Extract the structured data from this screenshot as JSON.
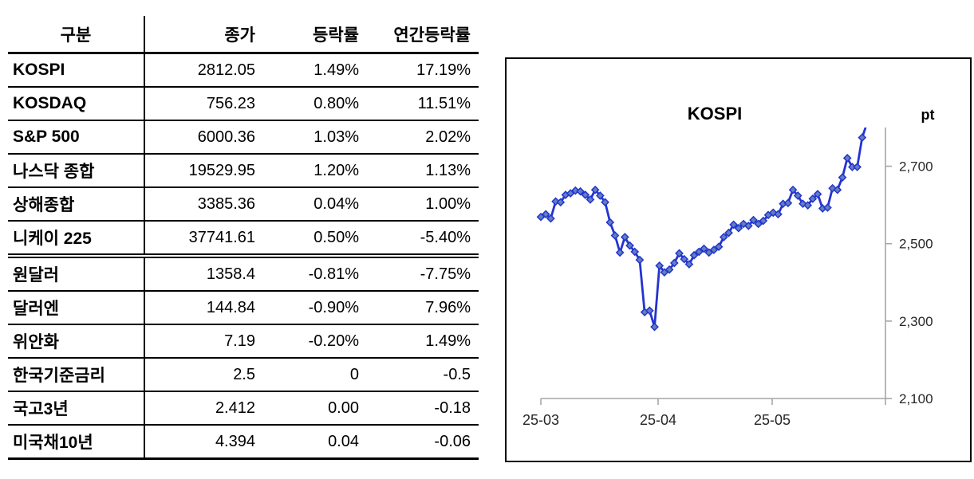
{
  "table": {
    "headers": [
      "구분",
      "종가",
      "등락률",
      "연간등락률"
    ],
    "rows": [
      {
        "label": "KOSPI",
        "values": [
          "2812.05",
          "1.49%",
          "17.19%"
        ]
      },
      {
        "label": "KOSDAQ",
        "values": [
          "756.23",
          "0.80%",
          "11.51%"
        ]
      },
      {
        "label": "S&P 500",
        "values": [
          "6000.36",
          "1.03%",
          "2.02%"
        ]
      },
      {
        "label": "나스닥 종합",
        "values": [
          "19529.95",
          "1.20%",
          "1.13%"
        ]
      },
      {
        "label": "상해종합",
        "values": [
          "3385.36",
          "0.04%",
          "1.00%"
        ]
      },
      {
        "label": "니케이 225",
        "values": [
          "37741.61",
          "0.50%",
          "-5.40%"
        ],
        "section_end": true
      },
      {
        "label": "원달러",
        "values": [
          "1358.4",
          "-0.81%",
          "-7.75%"
        ]
      },
      {
        "label": "달러엔",
        "values": [
          "144.84",
          "-0.90%",
          "7.96%"
        ]
      },
      {
        "label": "위안화",
        "values": [
          "7.19",
          "-0.20%",
          "1.49%"
        ]
      },
      {
        "label": "한국기준금리",
        "values": [
          "2.5",
          "0",
          "-0.5"
        ]
      },
      {
        "label": "국고3년",
        "values": [
          "2.412",
          "0.00",
          "-0.18"
        ]
      },
      {
        "label": "미국채10년",
        "values": [
          "4.394",
          "0.04",
          "-0.06"
        ]
      }
    ]
  },
  "chart_data": {
    "type": "line",
    "title": "KOSPI",
    "unit": "pt",
    "xlabel": "",
    "ylabel": "pt",
    "ylim": [
      2100,
      2800
    ],
    "grid": false,
    "legend": false,
    "axis_side": "right",
    "x_tick_labels": [
      "25-03",
      "25-04",
      "25-05"
    ],
    "y_ticks": [
      {
        "value": 2700,
        "label": "2,700"
      },
      {
        "value": 2500,
        "label": "2,500"
      },
      {
        "value": 2300,
        "label": "2,300"
      },
      {
        "value": 2100,
        "label": "2,100"
      }
    ],
    "series": [
      {
        "name": "KOSPI",
        "marker": "diamond",
        "values": [
          2569,
          2576,
          2565,
          2609,
          2607,
          2626,
          2630,
          2637,
          2635,
          2626,
          2614,
          2639,
          2624,
          2607,
          2555,
          2521,
          2477,
          2517,
          2495,
          2479,
          2458,
          2323,
          2327,
          2285,
          2443,
          2426,
          2433,
          2450,
          2475,
          2460,
          2447,
          2470,
          2479,
          2487,
          2477,
          2484,
          2492,
          2517,
          2528,
          2549,
          2540,
          2551,
          2546,
          2561,
          2551,
          2559,
          2574,
          2580,
          2576,
          2603,
          2605,
          2639,
          2624,
          2603,
          2599,
          2616,
          2628,
          2591,
          2593,
          2643,
          2639,
          2671,
          2721,
          2698,
          2698,
          2774,
          2812
        ]
      }
    ],
    "colors": {
      "line": "#2433d0",
      "marker_fill": "#6080bf",
      "axis": "#a6a6a6",
      "label_text": "#262626"
    }
  }
}
